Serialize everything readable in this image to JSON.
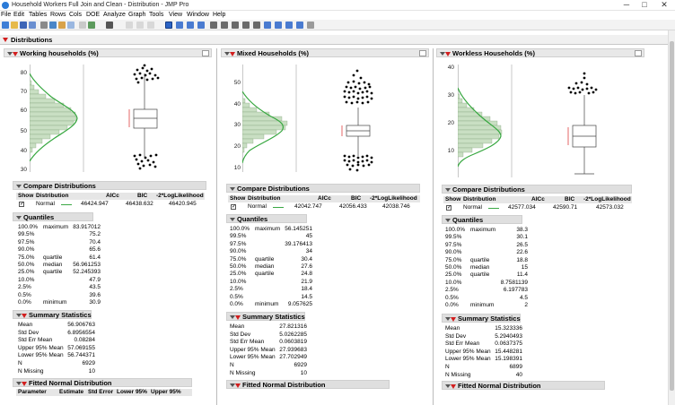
{
  "window": {
    "title": "Household Workers Full Join and Clean - Distribution - JMP Pro",
    "minimize": "─",
    "maximize": "□",
    "close": "✕"
  },
  "menu": [
    "File",
    "Edit",
    "Tables",
    "Rows",
    "Cols",
    "DOE",
    "Analyze",
    "Graph",
    "Tools",
    "View",
    "Window",
    "Help"
  ],
  "toolbar_icons": [
    "new-table-icon",
    "open-icon",
    "save-icon",
    "print-icon",
    "cut-icon",
    "copy-icon",
    "paste-icon",
    "search-icon",
    "arrow-icon",
    "help-icon",
    "select-icon",
    "scroller-icon",
    "lasso-icon",
    "brush-icon",
    "magnifier-icon",
    "crosshair-icon",
    "annotate-icon",
    "line-icon",
    "polygon-icon",
    "oval-icon"
  ],
  "distributions_title": "Distributions",
  "compare": {
    "title": "Compare Distributions",
    "headers": [
      "Show",
      "Distribution",
      "AICc",
      "BIC",
      "-2*LogLikelihood"
    ],
    "dist_name": "Normal"
  },
  "quantiles_title": "Quantiles",
  "summary_title": "Summary Statistics",
  "fitted_title": "Fitted Normal Distribution",
  "fitted_headers": [
    "Parameter",
    "Estimate",
    "Std Error",
    "Lower 95%",
    "Upper 95%"
  ],
  "panels": [
    {
      "title": "Working households (%)",
      "ticks": [
        "80",
        "70",
        "60",
        "50",
        "40",
        "30"
      ],
      "compare_values": [
        "46424.947",
        "46438.632",
        "46420.945"
      ],
      "quantiles": [
        [
          "100.0%",
          "maximum",
          "83.917012"
        ],
        [
          "99.5%",
          "",
          "75.2"
        ],
        [
          "97.5%",
          "",
          "70.4"
        ],
        [
          "90.0%",
          "",
          "65.6"
        ],
        [
          "75.0%",
          "quartile",
          "61.4"
        ],
        [
          "50.0%",
          "median",
          "56.961253"
        ],
        [
          "25.0%",
          "quartile",
          "52.245393"
        ],
        [
          "10.0%",
          "",
          "47.9"
        ],
        [
          "2.5%",
          "",
          "43.5"
        ],
        [
          "0.5%",
          "",
          "39.6"
        ],
        [
          "0.0%",
          "minimum",
          "30.9"
        ]
      ],
      "summary": [
        [
          "Mean",
          "56.906763"
        ],
        [
          "Std Dev",
          "6.8956554"
        ],
        [
          "Std Err Mean",
          "0.08284"
        ],
        [
          "Upper 95% Mean",
          "57.069155"
        ],
        [
          "Lower 95% Mean",
          "56.744371"
        ],
        [
          "N",
          "6929"
        ],
        [
          "N Missing",
          "10"
        ]
      ]
    },
    {
      "title": "Mixed Households (%)",
      "ticks": [
        "50",
        "40",
        "30",
        "20",
        "10"
      ],
      "compare_values": [
        "42042.747",
        "42056.433",
        "42038.746"
      ],
      "quantiles": [
        [
          "100.0%",
          "maximum",
          "56.145251"
        ],
        [
          "99.5%",
          "",
          "45"
        ],
        [
          "97.5%",
          "",
          "39.176413"
        ],
        [
          "90.0%",
          "",
          "34"
        ],
        [
          "75.0%",
          "quartile",
          "30.4"
        ],
        [
          "50.0%",
          "median",
          "27.6"
        ],
        [
          "25.0%",
          "quartile",
          "24.8"
        ],
        [
          "10.0%",
          "",
          "21.9"
        ],
        [
          "2.5%",
          "",
          "18.4"
        ],
        [
          "0.5%",
          "",
          "14.5"
        ],
        [
          "0.0%",
          "minimum",
          "9.057625"
        ]
      ],
      "summary": [
        [
          "Mean",
          "27.821316"
        ],
        [
          "Std Dev",
          "5.0262285"
        ],
        [
          "Std Err Mean",
          "0.0603819"
        ],
        [
          "Upper 95% Mean",
          "27.939683"
        ],
        [
          "Lower 95% Mean",
          "27.702949"
        ],
        [
          "N",
          "6929"
        ],
        [
          "N Missing",
          "10"
        ]
      ]
    },
    {
      "title": "Workless Households (%)",
      "ticks": [
        "40",
        "30",
        "20",
        "10"
      ],
      "compare_values": [
        "42577.034",
        "42590.71",
        "42573.032"
      ],
      "quantiles": [
        [
          "100.0%",
          "maximum",
          "38.3"
        ],
        [
          "99.5%",
          "",
          "30.1"
        ],
        [
          "97.5%",
          "",
          "26.5"
        ],
        [
          "90.0%",
          "",
          "22.6"
        ],
        [
          "75.0%",
          "quartile",
          "18.8"
        ],
        [
          "50.0%",
          "median",
          "15"
        ],
        [
          "25.0%",
          "quartile",
          "11.4"
        ],
        [
          "10.0%",
          "",
          "8.7581139"
        ],
        [
          "2.5%",
          "",
          "6.197783"
        ],
        [
          "0.5%",
          "",
          "4.5"
        ],
        [
          "0.0%",
          "minimum",
          "2"
        ]
      ],
      "summary": [
        [
          "Mean",
          "15.323336"
        ],
        [
          "Std Dev",
          "5.2940493"
        ],
        [
          "Std Err Mean",
          "0.0637375"
        ],
        [
          "Upper 95% Mean",
          "15.448281"
        ],
        [
          "Lower 95% Mean",
          "15.198391"
        ],
        [
          "N",
          "6899"
        ],
        [
          "N Missing",
          "40"
        ]
      ]
    }
  ]
}
